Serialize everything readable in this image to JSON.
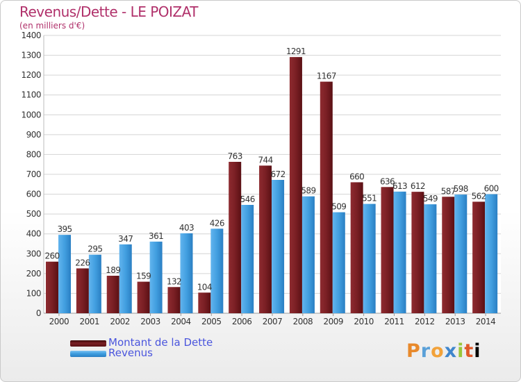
{
  "title": "Revenus/Dette - LE POIZAT",
  "subtitle": "(en milliers d'€)",
  "logo": {
    "letters": [
      "P",
      "r",
      "o",
      "x",
      "i",
      "t",
      "i"
    ]
  },
  "colors": {
    "dette": "#7a1f24",
    "revenus": "#3f9ee0",
    "grid": "#d4d4d4",
    "axis_text": "#333333"
  },
  "legend": [
    {
      "label": "Montant de la Dette",
      "color": "#6b1414"
    },
    {
      "label": "Revenus",
      "color": "#3f9ee0"
    }
  ],
  "chart_data": {
    "type": "bar",
    "title": "Revenus/Dette - LE POIZAT",
    "subtitle": "(en milliers d'€)",
    "categories": [
      "2000",
      "2001",
      "2002",
      "2003",
      "2004",
      "2005",
      "2006",
      "2007",
      "2008",
      "2009",
      "2010",
      "2011",
      "2012",
      "2013",
      "2014"
    ],
    "series": [
      {
        "name": "Montant de la Dette",
        "values": [
          260,
          226,
          189,
          159,
          132,
          104,
          763,
          744,
          1291,
          1167,
          660,
          636,
          612,
          587,
          562
        ]
      },
      {
        "name": "Revenus",
        "values": [
          395,
          295,
          347,
          361,
          403,
          426,
          546,
          672,
          589,
          509,
          551,
          613,
          549,
          598,
          600
        ]
      }
    ],
    "ylim": [
      0,
      1400
    ],
    "yticks": [
      0,
      100,
      200,
      300,
      400,
      500,
      600,
      700,
      800,
      900,
      1000,
      1100,
      1200,
      1300,
      1400
    ],
    "grid": true,
    "legend_position": "bottom-left"
  }
}
